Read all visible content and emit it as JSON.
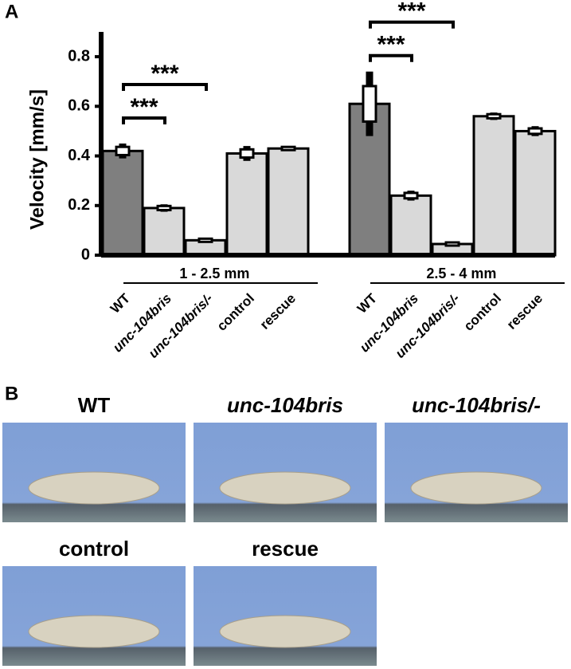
{
  "chart_data": {
    "type": "bar",
    "panel_label": "A",
    "y_label": "Velocity [mm/s]",
    "categories": [
      "WT",
      "unc-104bris",
      "unc-104bris/-",
      "control",
      "rescue"
    ],
    "italic": [
      false,
      true,
      true,
      false,
      false
    ],
    "colors": [
      "#7f7f7f",
      "#d9d9d9",
      "#d9d9d9",
      "#d9d9d9",
      "#d9d9d9"
    ],
    "groups": [
      {
        "name": "1 - 2.5 mm",
        "values": [
          0.42,
          0.19,
          0.06,
          0.41,
          0.43
        ],
        "errors": [
          0.03,
          0.015,
          0.005,
          0.03,
          0.01
        ]
      },
      {
        "name": "2.5 - 4 mm",
        "values": [
          0.61,
          0.24,
          0.045,
          0.56,
          0.5
        ],
        "errors": [
          0.13,
          0.02,
          0.004,
          0.015,
          0.02
        ]
      }
    ],
    "significance": [
      {
        "group": 0,
        "from": 0,
        "to": 1,
        "label": "***"
      },
      {
        "group": 0,
        "from": 0,
        "to": 2,
        "label": "***"
      },
      {
        "group": 1,
        "from": 0,
        "to": 1,
        "label": "***"
      },
      {
        "group": 1,
        "from": 0,
        "to": 2,
        "label": "***"
      }
    ],
    "ylim": [
      0,
      0.9
    ],
    "yticks": [
      0,
      0.2,
      0.4,
      0.6,
      0.8
    ]
  },
  "panel_b": {
    "label": "B",
    "captions": [
      "WT",
      "unc-104bris",
      "unc-104bris/-",
      "control",
      "rescue"
    ],
    "italic": [
      false,
      true,
      true,
      false,
      false
    ]
  }
}
